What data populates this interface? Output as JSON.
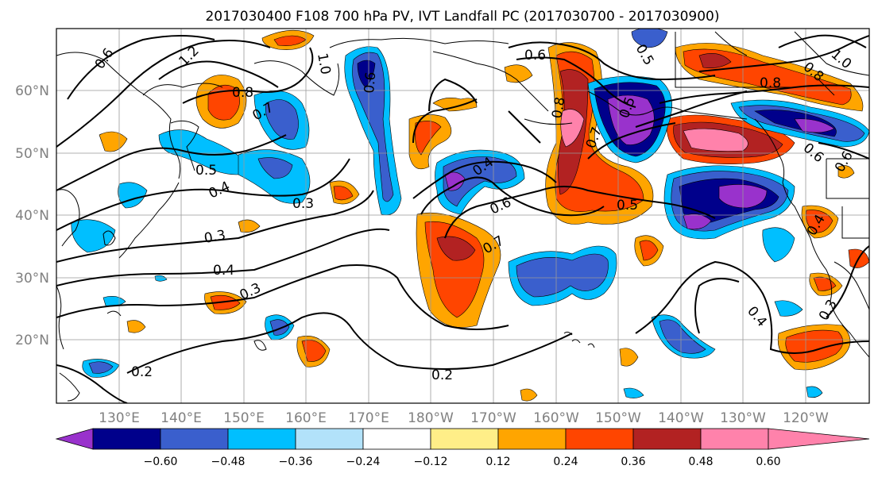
{
  "title": "2017030400 F108 700 hPa PV, IVT Landfall PC (2017030700 - 2017030900)",
  "lat_labels": [
    "60°N",
    "50°N",
    "40°N",
    "30°N",
    "20°N"
  ],
  "lon_labels": [
    "130°E",
    "140°E",
    "150°E",
    "160°E",
    "170°E",
    "180°W",
    "170°W",
    "160°W",
    "150°W",
    "140°W",
    "130°W",
    "120°W"
  ],
  "colorbar": {
    "ticks": [
      "−0.60",
      "−0.48",
      "−0.36",
      "−0.24",
      "−0.12",
      "0.12",
      "0.24",
      "0.36",
      "0.48",
      "0.60"
    ],
    "colors": [
      "#9932CC",
      "#00008B",
      "#3A5FCD",
      "#00BFFF",
      "#B2E2FA",
      "#FFFFFF",
      "#FFEE88",
      "#FFA500",
      "#FF4500",
      "#B22222",
      "#FF82AB"
    ]
  },
  "contour_labels": [
    "0.6",
    "1.2",
    "1.0",
    "0.8",
    "0.7",
    "0.6",
    "0.5",
    "0.4",
    "0.3",
    "0.3",
    "0.4",
    "0.3",
    "0.2",
    "0.2",
    "0.6",
    "0.7",
    "0.4",
    "0.5",
    "0.8",
    "0.6",
    "0.7",
    "0.5",
    "0.5",
    "0.8",
    "0.8",
    "1.0",
    "0.6",
    "0.4",
    "0.3",
    "0.6",
    "0.4"
  ]
}
